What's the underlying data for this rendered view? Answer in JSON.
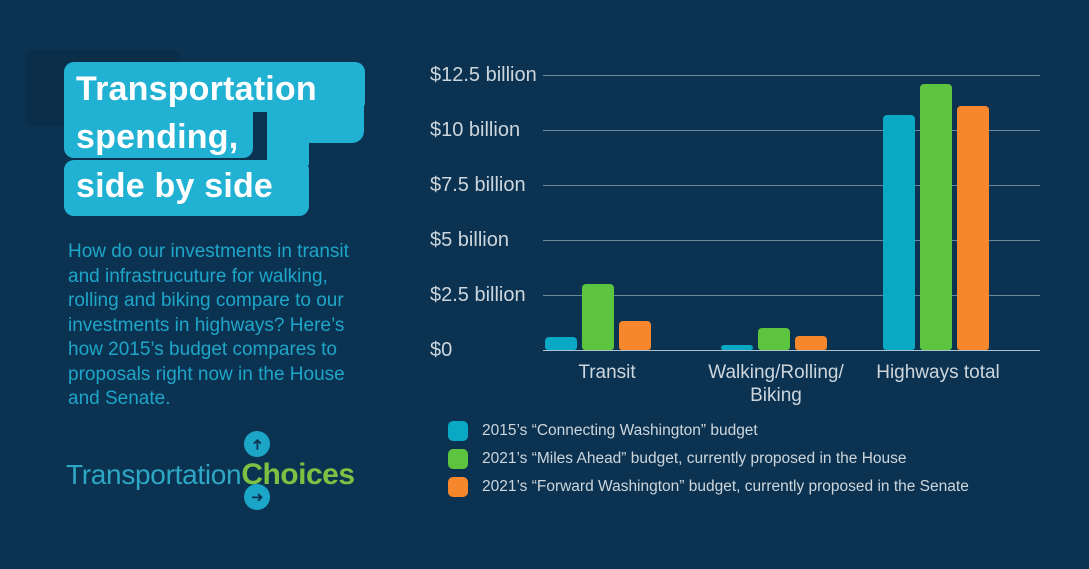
{
  "colors": {
    "background": "#0c3251",
    "title_highlight": "#21b1d3",
    "title_text": "#ffffff",
    "intro_text": "#1ea6c9",
    "axis_text": "#ccd6dc",
    "logo_teal": "#2da7c4",
    "logo_green": "#7cc142"
  },
  "title": {
    "lines": [
      "Transportation",
      "spending,",
      "side by side"
    ]
  },
  "intro": "How do our investments in transit and infrastrucuture for walking, rolling and biking compare to our investments in highways? Here’s how 2015’s budget compares to proposals right now in the House and Senate.",
  "logo": {
    "part1": "Transportation",
    "part2": "Choices",
    "icons": [
      "up-arrow-circle",
      "right-arrow-circle"
    ]
  },
  "chart_data": {
    "type": "bar",
    "title": "",
    "categories": [
      "Transit",
      "Walking/Rolling/\nBiking",
      "Highways total"
    ],
    "series": [
      {
        "name": "2015’s “Connecting Washington” budget",
        "color": "#09a8c4",
        "values": [
          0.6,
          0.25,
          10.7
        ]
      },
      {
        "name": "2021’s “Miles Ahead” budget, currently proposed in the House",
        "color": "#5cc43e",
        "values": [
          3.0,
          1.0,
          12.1
        ]
      },
      {
        "name": "2021’s “Forward Washington” budget, currently proposed in the Senate",
        "color": "#f6872d",
        "values": [
          1.3,
          0.65,
          11.1
        ]
      }
    ],
    "unit": "billions of dollars",
    "ylim": [
      0,
      12.5
    ],
    "ytick_values": [
      0,
      2.5,
      5,
      7.5,
      10,
      12.5
    ],
    "yticks": [
      "$0",
      "$2.5 billion",
      "$5 billion",
      "$7.5 billion",
      "$10 billion",
      "$12.5 billion"
    ],
    "grid": true,
    "legend_position": "bottom-left"
  }
}
